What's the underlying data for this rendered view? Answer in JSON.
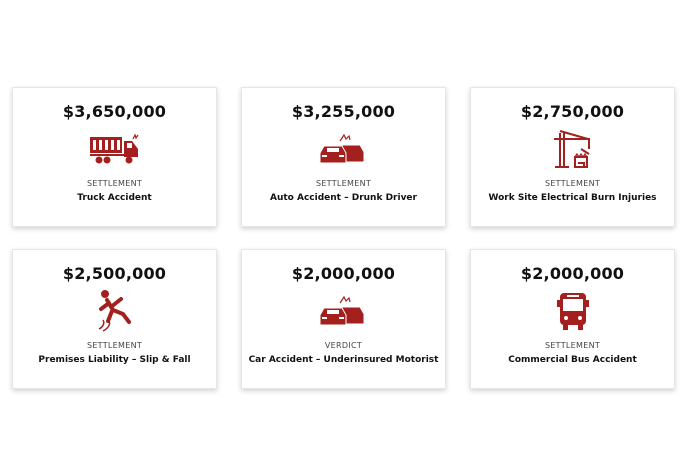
{
  "accent": "#a3201f",
  "cards": [
    {
      "amount": "$3,650,000",
      "type": "SETTLEMENT",
      "title": "Truck Accident",
      "icon": "truck-crash-icon"
    },
    {
      "amount": "$3,255,000",
      "type": "SETTLEMENT",
      "title": "Auto Accident – Drunk Driver",
      "icon": "car-crash-icon"
    },
    {
      "amount": "$2,750,000",
      "type": "SETTLEMENT",
      "title": "Work Site Electrical Burn Injuries",
      "icon": "crane-icon"
    },
    {
      "amount": "$2,500,000",
      "type": "SETTLEMENT",
      "title": "Premises Liability – Slip & Fall",
      "icon": "slip-fall-icon"
    },
    {
      "amount": "$2,000,000",
      "type": "VERDICT",
      "title": "Car Accident – Underinsured Motorist",
      "icon": "car-crash-icon"
    },
    {
      "amount": "$2,000,000",
      "type": "SETTLEMENT",
      "title": "Commercial Bus Accident",
      "icon": "bus-icon"
    }
  ]
}
